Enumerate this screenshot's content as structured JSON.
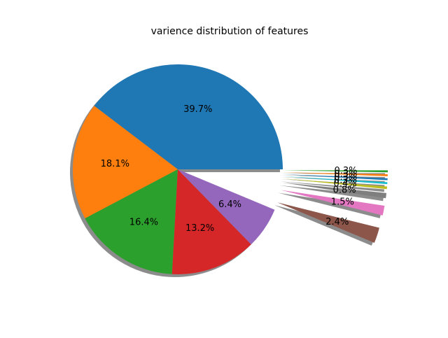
{
  "chart_data": {
    "type": "pie",
    "title": "varience distribution of features",
    "autopct_format": "%.1f%%",
    "shadow": true,
    "start_angle": 0,
    "direction": "counterclockwise",
    "slices": [
      {
        "value": 39.7,
        "label": "39.7%",
        "color": "#1f77b4",
        "explode": 0.0
      },
      {
        "value": 18.1,
        "label": "18.1%",
        "color": "#ff7f0e",
        "explode": 0.0
      },
      {
        "value": 16.4,
        "label": "16.4%",
        "color": "#2ca02c",
        "explode": 0.0
      },
      {
        "value": 13.2,
        "label": "13.2%",
        "color": "#d62728",
        "explode": 0.0
      },
      {
        "value": 6.4,
        "label": "6.4%",
        "color": "#9467bd",
        "explode": 0.0
      },
      {
        "value": 2.4,
        "label": "2.4%",
        "color": "#8c564b",
        "explode": 1.0
      },
      {
        "value": 1.5,
        "label": "1.5%",
        "color": "#e377c2",
        "explode": 1.0
      },
      {
        "value": 0.8,
        "label": "0.8%",
        "color": "#7f7f7f",
        "explode": 1.0
      },
      {
        "value": 0.4,
        "label": "0.4%",
        "color": "#bcbd22",
        "explode": 1.0
      },
      {
        "value": 0.3,
        "label": "0.3%",
        "color": "#17becf",
        "explode": 1.0
      },
      {
        "value": 0.3,
        "label": "0.3%",
        "color": "#1f77b4",
        "explode": 1.0
      },
      {
        "value": 0.3,
        "label": "0.3%",
        "color": "#ff7f0e",
        "explode": 1.0
      },
      {
        "value": 0.3,
        "label": "0.3%",
        "color": "#2ca02c",
        "explode": 1.0
      }
    ]
  }
}
